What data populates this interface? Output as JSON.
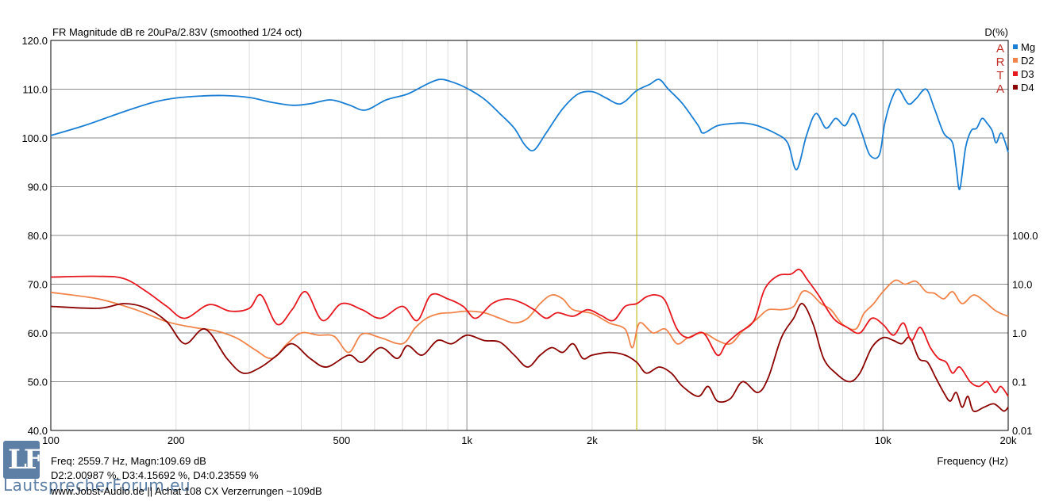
{
  "chart_data": {
    "type": "line",
    "title": "FR Magnitude dB re 20uPa/2.83V (smoothed 1/24 oct)",
    "y2_title": "D(%)",
    "xlabel": "Frequency (Hz)",
    "x_scale": "log",
    "xlim": [
      100,
      20000
    ],
    "ylim": [
      40,
      120
    ],
    "y2_scale": "log",
    "y2lim": [
      0.01,
      100
    ],
    "x_ticks": [
      {
        "v": 100,
        "label": "100"
      },
      {
        "v": 200,
        "label": "200"
      },
      {
        "v": 500,
        "label": "500"
      },
      {
        "v": 1000,
        "label": "1k"
      },
      {
        "v": 2000,
        "label": "2k"
      },
      {
        "v": 5000,
        "label": "5k"
      },
      {
        "v": 10000,
        "label": "10k"
      },
      {
        "v": 20000,
        "label": "20k"
      }
    ],
    "y_ticks": [
      "40.0",
      "50.0",
      "60.0",
      "70.0",
      "80.0",
      "90.0",
      "100.0",
      "110.0",
      "120.0"
    ],
    "y2_ticks": [
      "0.01",
      "0.1",
      "1.0",
      "10.0",
      "100.0"
    ],
    "grid": true,
    "cursor_x": 2559.7,
    "legend_position": "top-right",
    "legend_art": [
      "A",
      "R",
      "T",
      "A"
    ],
    "series": [
      {
        "name": "Mg",
        "color": "#1a7fd4",
        "axis": "left",
        "x": [
          100,
          120,
          140,
          160,
          180,
          200,
          230,
          260,
          300,
          340,
          380,
          420,
          470,
          520,
          570,
          640,
          720,
          800,
          860,
          920,
          1000,
          1100,
          1200,
          1300,
          1380,
          1450,
          1550,
          1700,
          1850,
          2000,
          2150,
          2300,
          2400,
          2560,
          2750,
          2900,
          3050,
          3300,
          3600,
          3700,
          4000,
          4400,
          4700,
          5000,
          5500,
          5900,
          6200,
          6550,
          6900,
          7300,
          7700,
          8100,
          8500,
          8900,
          9300,
          9800,
          10100,
          10500,
          10900,
          11500,
          12000,
          12700,
          13300,
          14000,
          14700,
          15000,
          15300,
          15800,
          16300,
          16800,
          17300,
          17800,
          18300,
          18700,
          19200,
          19600,
          20000
        ],
        "y": [
          100.5,
          102.5,
          104.5,
          106.2,
          107.5,
          108.2,
          108.6,
          108.7,
          108.3,
          107.3,
          106.7,
          107,
          107.8,
          106.8,
          105.7,
          107.8,
          109,
          111,
          112,
          111.5,
          110.2,
          108,
          105,
          102,
          98.5,
          97.5,
          101,
          106,
          109,
          109.5,
          108.3,
          107,
          107.5,
          109.7,
          111,
          112,
          110,
          107,
          102.5,
          101,
          102.5,
          103,
          103,
          102.5,
          101,
          99,
          93.5,
          100.5,
          105,
          102,
          104,
          102.5,
          105,
          101,
          96.5,
          96.5,
          103,
          108,
          110,
          107,
          108,
          110,
          106,
          101,
          99,
          94,
          89.5,
          98,
          101.5,
          102,
          104,
          103,
          101.5,
          99,
          101,
          99.5,
          97
        ]
      },
      {
        "name": "D2",
        "color": "#f0844a",
        "axis": "right",
        "x": [
          100,
          130,
          160,
          190,
          220,
          250,
          280,
          310,
          340,
          370,
          400,
          440,
          480,
          520,
          560,
          620,
          700,
          750,
          800,
          860,
          920,
          1000,
          1100,
          1200,
          1300,
          1400,
          1500,
          1600,
          1700,
          1800,
          2000,
          2200,
          2400,
          2500,
          2600,
          2800,
          3000,
          3200,
          3400,
          3700,
          4000,
          4300,
          4600,
          5000,
          5300,
          5700,
          6100,
          6400,
          6700,
          7100,
          7500,
          8000,
          8600,
          9000,
          9500,
          10000,
          10700,
          11300,
          12000,
          12700,
          13300,
          14000,
          14700,
          15500,
          16500,
          17500,
          18500,
          19200,
          20000
        ],
        "y": [
          6.8,
          5,
          3,
          1.7,
          1.3,
          1.1,
          0.78,
          0.45,
          0.3,
          0.6,
          1,
          0.9,
          0.85,
          0.4,
          0.95,
          0.8,
          0.6,
          1.25,
          2,
          2.5,
          2.6,
          2.8,
          2.6,
          2,
          1.6,
          2,
          4,
          6,
          5,
          3,
          2.5,
          1.6,
          1.2,
          0.5,
          1.6,
          1,
          1.2,
          0.6,
          0.8,
          1,
          0.7,
          0.6,
          1.1,
          2,
          3,
          3,
          3.5,
          7,
          6.5,
          4,
          3,
          1.5,
          1.2,
          2.5,
          4,
          7,
          12,
          10,
          11.5,
          7,
          6.5,
          5,
          7,
          4,
          6,
          4.5,
          3,
          2.5,
          2.2
        ]
      },
      {
        "name": "D3",
        "color": "#e5191f",
        "axis": "right",
        "x": [
          100,
          130,
          150,
          170,
          190,
          210,
          240,
          270,
          300,
          320,
          350,
          380,
          410,
          450,
          500,
          560,
          620,
          700,
          760,
          820,
          900,
          980,
          1050,
          1150,
          1250,
          1350,
          1450,
          1550,
          1650,
          1800,
          1950,
          2100,
          2250,
          2400,
          2560,
          2700,
          2850,
          3000,
          3200,
          3400,
          3700,
          4000,
          4200,
          4500,
          4900,
          5200,
          5600,
          6000,
          6300,
          6600,
          7000,
          7600,
          8200,
          8800,
          9400,
          10000,
          10600,
          11200,
          11700,
          12300,
          13000,
          13600,
          14200,
          14700,
          15300,
          16200,
          17000,
          17800,
          18600,
          19200,
          20000
        ],
        "y": [
          14,
          14.5,
          13,
          7,
          3.5,
          2,
          3.8,
          2.8,
          3.2,
          6,
          1.5,
          3,
          7,
          1.8,
          4,
          3,
          2,
          3.5,
          1.8,
          6,
          5,
          3.5,
          2,
          4,
          5,
          4.2,
          3,
          2,
          2.6,
          2.2,
          3,
          2.3,
          1.8,
          3.5,
          4,
          5.5,
          6,
          4.5,
          1.2,
          0.8,
          1,
          0.35,
          0.6,
          1,
          1.8,
          8,
          15,
          16,
          20,
          12,
          6,
          2,
          1.3,
          1,
          2,
          1.5,
          0.9,
          1.6,
          0.7,
          1.3,
          0.5,
          0.3,
          0.25,
          0.15,
          0.2,
          0.1,
          0.08,
          0.1,
          0.06,
          0.08,
          0.05
        ]
      },
      {
        "name": "D4",
        "color": "#8b0000",
        "axis": "right",
        "x": [
          100,
          130,
          150,
          170,
          190,
          210,
          235,
          265,
          290,
          320,
          350,
          380,
          420,
          460,
          520,
          560,
          620,
          680,
          720,
          780,
          850,
          920,
          1000,
          1100,
          1200,
          1300,
          1400,
          1500,
          1600,
          1700,
          1800,
          1900,
          2000,
          2200,
          2400,
          2560,
          2700,
          2900,
          3100,
          3300,
          3600,
          3800,
          4000,
          4300,
          4600,
          5000,
          5300,
          5700,
          6100,
          6400,
          6800,
          7200,
          7700,
          8300,
          8800,
          9400,
          10000,
          10600,
          11100,
          11600,
          12200,
          12800,
          13400,
          14000,
          14500,
          15000,
          15500,
          16000,
          16500,
          17500,
          18500,
          19500,
          20000
        ],
        "y": [
          3.5,
          3.2,
          4,
          3.2,
          1.7,
          0.6,
          1.2,
          0.3,
          0.15,
          0.2,
          0.35,
          0.6,
          0.3,
          0.2,
          0.35,
          0.25,
          0.5,
          0.3,
          0.55,
          0.35,
          0.7,
          0.6,
          0.9,
          0.7,
          0.65,
          0.35,
          0.2,
          0.35,
          0.5,
          0.4,
          0.6,
          0.3,
          0.35,
          0.4,
          0.35,
          0.25,
          0.15,
          0.2,
          0.15,
          0.08,
          0.05,
          0.08,
          0.04,
          0.045,
          0.1,
          0.06,
          0.12,
          0.8,
          2,
          4,
          1.5,
          0.3,
          0.15,
          0.1,
          0.15,
          0.5,
          0.8,
          0.7,
          0.6,
          0.8,
          0.3,
          0.25,
          0.12,
          0.06,
          0.04,
          0.06,
          0.03,
          0.05,
          0.025,
          0.03,
          0.035,
          0.025,
          0.03
        ]
      }
    ]
  },
  "footer": {
    "cursor_readout": "Freq: 2559.7 Hz, Magn:109.69 dB",
    "distortion_readout": "D2:2.00987 %, D3:4.15692 %, D4:0.23559 %",
    "caption": "www.Jobst-Audio.de || Achat 108 CX  Verzerrungen ~109dB"
  },
  "logo": {
    "letters": "LF",
    "site": "LautsprecherForum.eu"
  }
}
